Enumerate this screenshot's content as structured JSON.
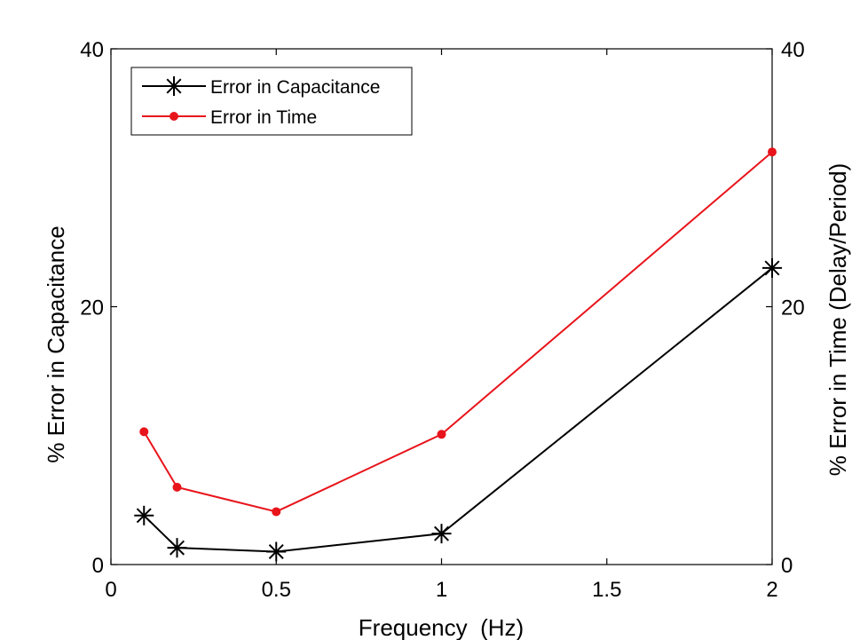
{
  "chart_data": {
    "type": "line",
    "xlabel": "Frequency  (Hz)",
    "ylabel_left": "% Error in Capacitance",
    "ylabel_right": "% Error in Time (Delay/Period)",
    "xlim": [
      0,
      2
    ],
    "ylim_left": [
      0,
      40
    ],
    "ylim_right": [
      0,
      40
    ],
    "x_ticks": [
      0,
      0.5,
      1,
      1.5,
      2
    ],
    "x_tick_labels": [
      "0",
      "0.5",
      "1",
      "1.5",
      "2"
    ],
    "y_ticks_left": [
      0,
      20,
      40
    ],
    "y_tick_labels_left": [
      "0",
      "20",
      "40"
    ],
    "y_ticks_right": [
      0,
      20,
      40
    ],
    "y_tick_labels_right": [
      "0",
      "20",
      "40"
    ],
    "grid": false,
    "legend_position": "top-left",
    "series": [
      {
        "name": "Error in Capacitance",
        "axis": "left",
        "color": "#000000",
        "marker": "asterisk",
        "x": [
          0.1,
          0.2,
          0.5,
          1,
          2
        ],
        "y": [
          3.8,
          1.3,
          1.0,
          2.4,
          23.0
        ]
      },
      {
        "name": "Error in Time",
        "axis": "right",
        "color": "#e8141b",
        "marker": "dot",
        "x": [
          0.1,
          0.2,
          0.5,
          1,
          2
        ],
        "y": [
          10.3,
          6.0,
          4.1,
          10.1,
          32.0
        ]
      }
    ]
  }
}
